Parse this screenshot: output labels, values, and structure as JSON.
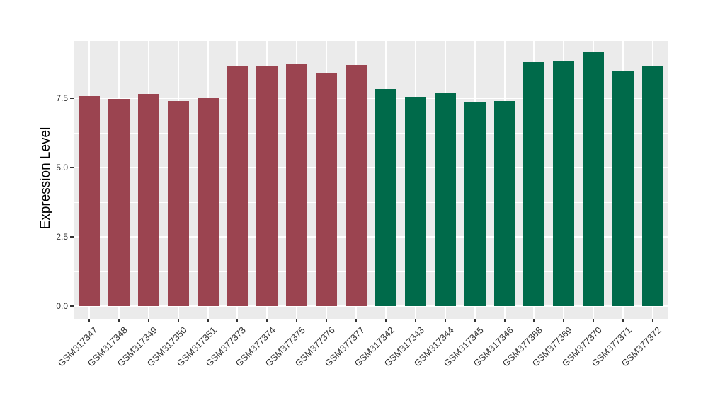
{
  "chart_data": {
    "type": "bar",
    "title": "",
    "xlabel": "",
    "ylabel": "Expression Level",
    "ylim": [
      -0.47,
      9.57
    ],
    "grid": "on",
    "legend_position": "none",
    "yticks_major": [
      {
        "label": "0.0",
        "value": 0.0
      },
      {
        "label": "2.5",
        "value": 2.5
      },
      {
        "label": "5.0",
        "value": 5.0
      },
      {
        "label": "7.5",
        "value": 7.5
      }
    ],
    "yticks_minor": [
      1.25,
      3.75,
      6.25,
      8.75
    ],
    "categories": [
      "GSM317347",
      "GSM317348",
      "GSM317349",
      "GSM317350",
      "GSM317351",
      "GSM377373",
      "GSM377374",
      "GSM377375",
      "GSM377376",
      "GSM377377",
      "GSM317342",
      "GSM317343",
      "GSM317344",
      "GSM317345",
      "GSM317346",
      "GSM377368",
      "GSM377369",
      "GSM377370",
      "GSM377371",
      "GSM377372"
    ],
    "values": [
      7.58,
      7.47,
      7.66,
      7.39,
      7.51,
      8.65,
      8.68,
      8.76,
      8.43,
      8.7,
      7.83,
      7.56,
      7.7,
      7.36,
      7.4,
      8.81,
      8.83,
      9.15,
      8.5,
      8.68
    ],
    "bar_groups": [
      "group1",
      "group1",
      "group1",
      "group1",
      "group1",
      "group1",
      "group1",
      "group1",
      "group1",
      "group1",
      "group2",
      "group2",
      "group2",
      "group2",
      "group2",
      "group2",
      "group2",
      "group2",
      "group2",
      "group2"
    ],
    "group_colors": {
      "group1": "#9B4450",
      "group2": "#006A4A"
    }
  },
  "colors": {
    "panel_background": "#EBEBEB",
    "figure_background": "#FFFFFF",
    "gridline": "#FFFFFF",
    "tick_mark": "#333333",
    "axis_text": "#333333",
    "axis_title": "#000000"
  }
}
